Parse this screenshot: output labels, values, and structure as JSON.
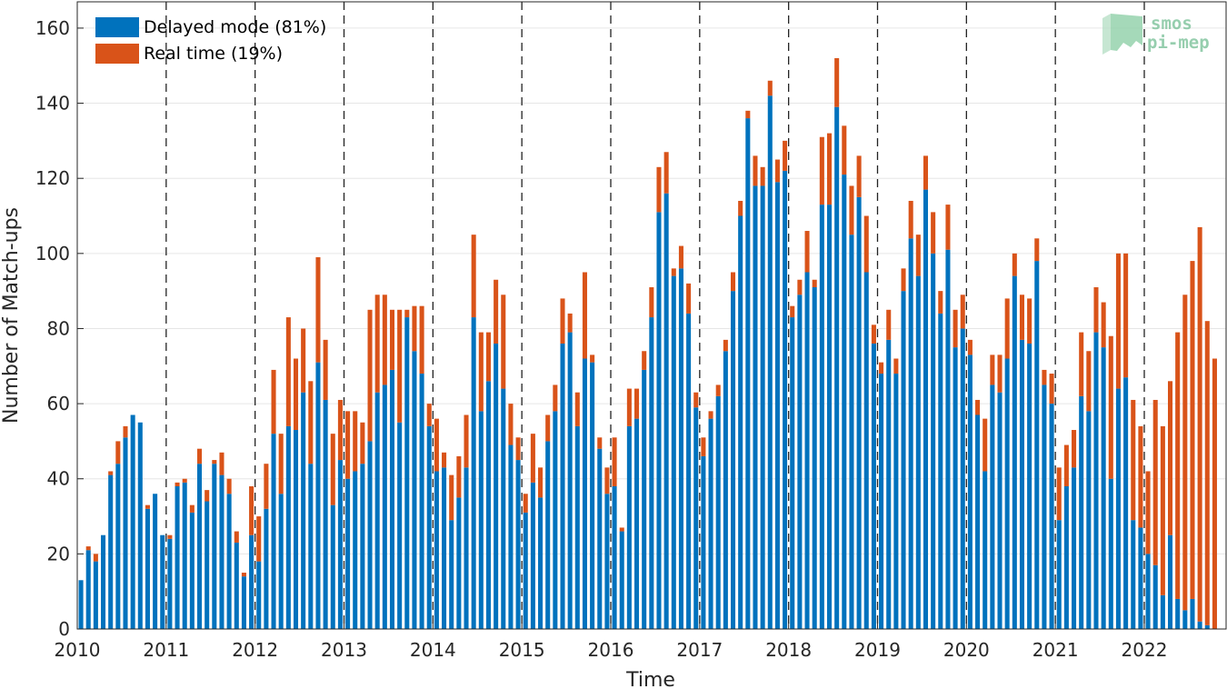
{
  "chart_data": {
    "type": "bar",
    "stacked": true,
    "xlabel": "Time",
    "ylabel": "Number of Match-ups",
    "ylim": [
      0,
      167
    ],
    "xlim": [
      2010,
      2022.92
    ],
    "yticks": [
      0,
      20,
      40,
      60,
      80,
      100,
      120,
      140,
      160
    ],
    "xticks": [
      "2010",
      "2011",
      "2012",
      "2013",
      "2014",
      "2015",
      "2016",
      "2017",
      "2018",
      "2019",
      "2020",
      "2021",
      "2022"
    ],
    "year_dividers": "dashed vertical lines at each year start",
    "grid": "horizontal",
    "legend_position": "top-left",
    "start": "2010-01",
    "frequency": "monthly",
    "series": [
      {
        "name": "Delayed mode (81%)",
        "color": "#0072BD",
        "values": [
          13,
          21,
          18,
          25,
          41,
          44,
          51,
          57,
          55,
          32,
          36,
          25,
          24,
          38,
          39,
          31,
          44,
          34,
          44,
          41,
          36,
          23,
          14,
          25,
          18,
          32,
          52,
          36,
          54,
          53,
          63,
          44,
          71,
          61,
          33,
          45,
          40,
          42,
          44,
          50,
          63,
          65,
          69,
          55,
          83,
          74,
          68,
          54,
          42,
          43,
          29,
          35,
          43,
          83,
          58,
          66,
          76,
          64,
          49,
          45,
          31,
          39,
          35,
          50,
          58,
          76,
          79,
          54,
          72,
          71,
          48,
          36,
          38,
          26,
          54,
          56,
          69,
          83,
          111,
          116,
          94,
          96,
          84,
          59,
          46,
          56,
          62,
          74,
          90,
          110,
          136,
          118,
          118,
          142,
          119,
          122,
          83,
          89,
          95,
          91,
          113,
          113,
          139,
          121,
          105,
          115,
          95,
          76,
          68,
          77,
          68,
          90,
          104,
          94,
          117,
          100,
          84,
          101,
          75,
          80,
          73,
          57,
          42,
          65,
          63,
          72,
          94,
          77,
          76,
          98,
          65,
          60,
          29,
          38,
          43,
          62,
          58,
          79,
          75,
          40,
          64,
          67,
          29,
          27,
          20,
          17,
          9,
          25,
          8,
          5,
          8,
          2,
          1,
          0,
          0
        ],
        "note": "values equal total minus real time"
      },
      {
        "name": "Real time (19%)",
        "color": "#D95319",
        "values": [
          0,
          1,
          2,
          0,
          1,
          6,
          3,
          0,
          0,
          1,
          0,
          0,
          1,
          1,
          1,
          2,
          4,
          3,
          1,
          6,
          4,
          3,
          1,
          13,
          12,
          12,
          17,
          16,
          29,
          19,
          17,
          22,
          28,
          16,
          19,
          16,
          18,
          16,
          11,
          35,
          26,
          24,
          16,
          30,
          2,
          12,
          18,
          6,
          14,
          4,
          12,
          11,
          14,
          22,
          21,
          13,
          17,
          25,
          11,
          6,
          5,
          13,
          8,
          7,
          7,
          12,
          5,
          9,
          23,
          2,
          3,
          7,
          13,
          1,
          10,
          8,
          5,
          8,
          12,
          11,
          2,
          6,
          8,
          4,
          5,
          2,
          3,
          3,
          5,
          4,
          2,
          8,
          5,
          4,
          6,
          8,
          3,
          4,
          11,
          2,
          18,
          19,
          13,
          13,
          13,
          11,
          15,
          5,
          3,
          8,
          4,
          6,
          10,
          11,
          9,
          11,
          6,
          12,
          10,
          9,
          4,
          4,
          14,
          8,
          10,
          16,
          6,
          12,
          12,
          6,
          4,
          8,
          14,
          11,
          10,
          17,
          16,
          12,
          12,
          38,
          36,
          33,
          32,
          27,
          22,
          44,
          45,
          41,
          71,
          84,
          90,
          105,
          81,
          72,
          0
        ],
        "note": "values equal stacked total minus delayed mode"
      }
    ]
  },
  "logo": {
    "line1": "smos",
    "line2": "pi-mep",
    "color": "#7dc29a"
  }
}
